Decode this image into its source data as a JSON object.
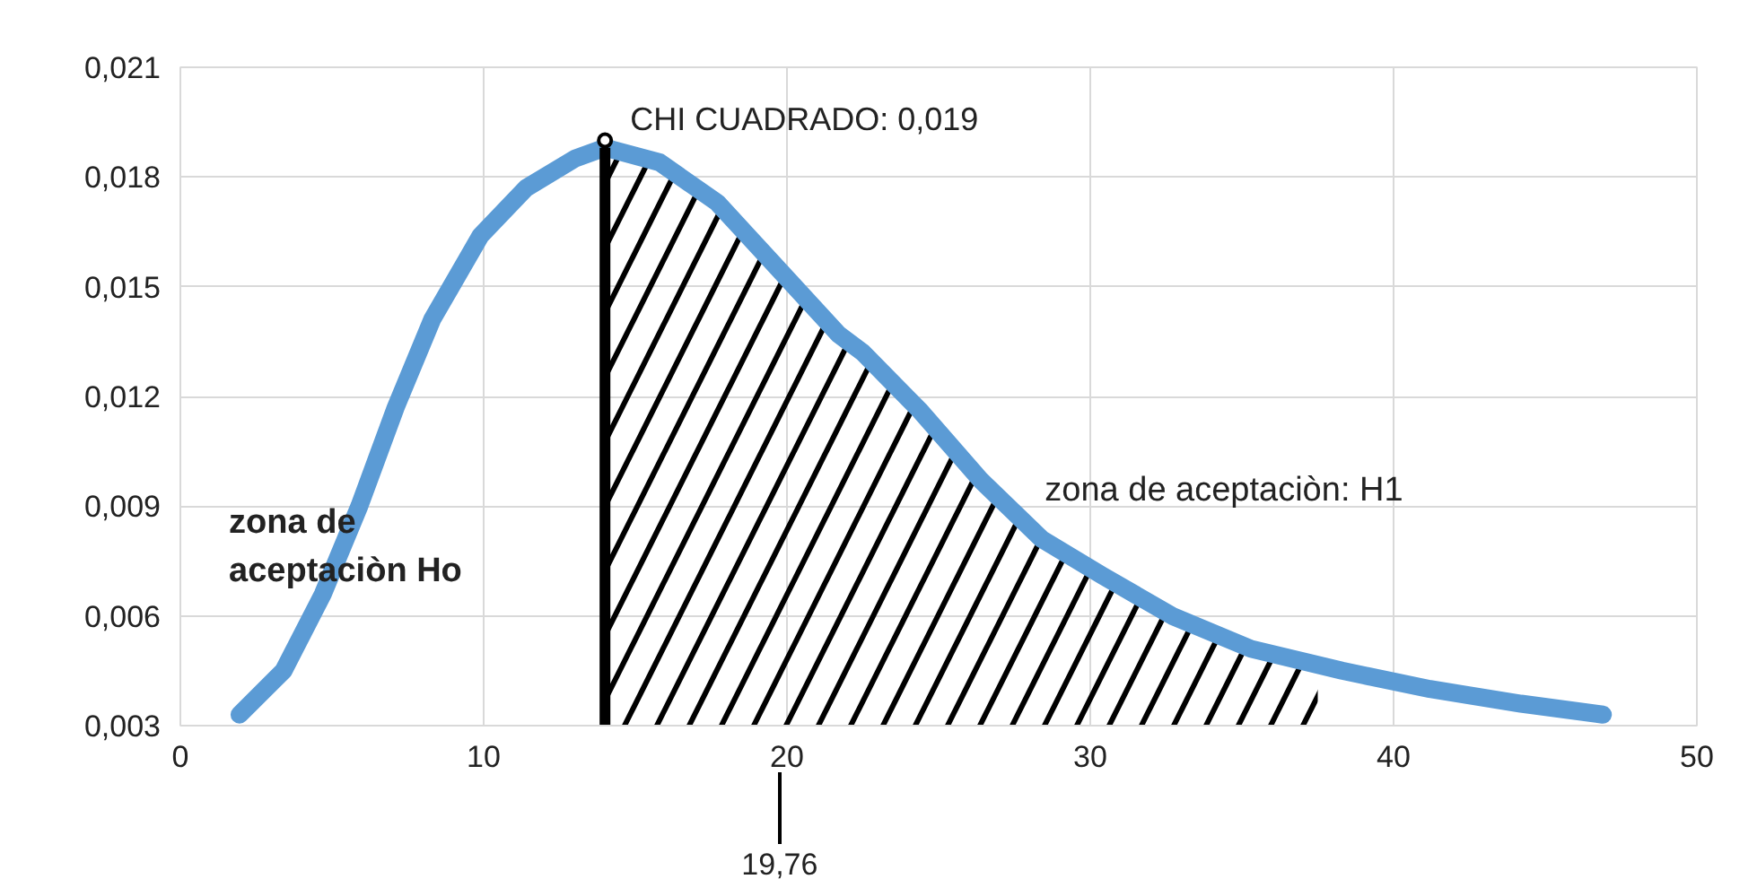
{
  "chart_data": {
    "type": "line",
    "x": [
      1.95,
      3.4,
      4.7,
      5.9,
      7.1,
      8.3,
      9.9,
      11.4,
      13.0,
      14.0,
      15.8,
      17.7,
      19.7,
      21.7,
      22.5,
      24.4,
      26.4,
      28.4,
      30.4,
      32.7,
      35.3,
      38.3,
      41.2,
      44.2,
      46.9
    ],
    "series": [
      {
        "type": "area",
        "color": "#000000",
        "x": [
          14.0,
          15.8,
          17.7,
          19.7,
          21.7,
          22.5,
          24.4,
          26.4,
          28.4,
          30.4,
          32.7,
          35.3,
          37.5
        ],
        "values": [
          0.0188,
          0.0184,
          0.0173,
          0.0155,
          0.0137,
          0.0132,
          0.0116,
          0.0097,
          0.0081,
          0.0071,
          0.006,
          0.0051,
          0.0047
        ]
      },
      {
        "color": "#5b9bd5",
        "values": [
          0.0033,
          0.0045,
          0.0066,
          0.009,
          0.0117,
          0.0141,
          0.0164,
          0.0177,
          0.0185,
          0.0188,
          0.0184,
          0.0173,
          0.0155,
          0.0137,
          0.0132,
          0.0116,
          0.0097,
          0.0081,
          0.0071,
          0.006,
          0.0051,
          0.0045,
          0.004,
          0.0036,
          0.0033
        ]
      }
    ],
    "xlim": [
      0,
      50
    ],
    "xticks": [
      0,
      10,
      20,
      30,
      40,
      50
    ],
    "ylim": [
      0.003,
      0.021
    ],
    "yticks": [
      {
        "value": 0.003,
        "label": "0,003"
      },
      {
        "value": 0.006,
        "label": "0,006"
      },
      {
        "value": 0.009,
        "label": "0,009"
      },
      {
        "value": 0.012,
        "label": "0,012"
      },
      {
        "value": 0.015,
        "label": "0,015"
      },
      {
        "value": 0.018,
        "label": "0,018"
      },
      {
        "value": 0.021,
        "label": "0,021"
      }
    ],
    "grid": true,
    "line_style": "solid",
    "ref_lines": [
      {
        "axis": "x",
        "value": 14.0,
        "color": "#000000"
      }
    ],
    "annotations": [
      {
        "text": "CHI CUADRADO: 0,019",
        "x": 14.0,
        "y": 0.019
      },
      "zona de\naceptaciòn Ho",
      "zona de aceptaciòn: H1",
      {
        "text": "19,76",
        "x": 19.76
      }
    ]
  }
}
